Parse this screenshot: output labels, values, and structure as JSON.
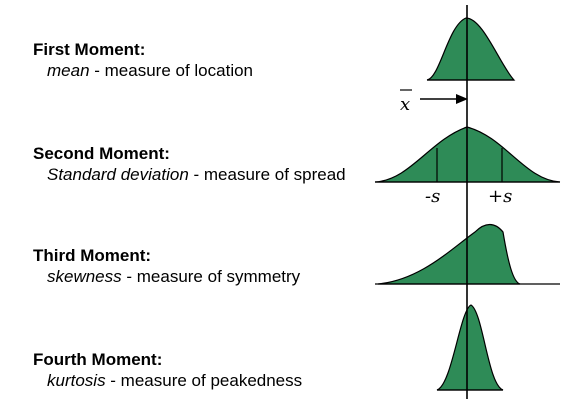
{
  "colors": {
    "fill": "#2e8b57",
    "stroke": "#000000"
  },
  "moments": [
    {
      "title": "First Moment:",
      "term": "mean",
      "rest": " - measure of location"
    },
    {
      "title": "Second Moment:",
      "term": "Standard deviation",
      "rest": " - measure of spread"
    },
    {
      "title": "Third Moment:",
      "term": "skewness",
      "rest": " - measure of symmetry"
    },
    {
      "title": "Fourth Moment:",
      "term": "kurtosis",
      "rest": " - measure of peakedness"
    }
  ],
  "labels": {
    "xbar": "x",
    "minus_s": "-s",
    "plus_s": "+s"
  }
}
